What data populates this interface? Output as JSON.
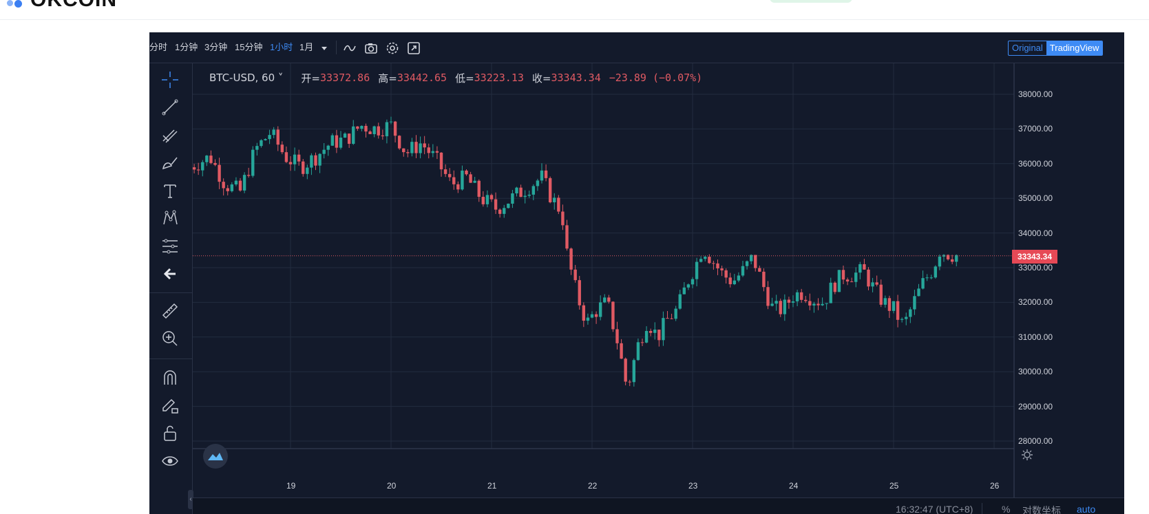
{
  "header": {
    "logo_text": "OKCOIN"
  },
  "toolbar": {
    "intervals": [
      {
        "label": "分时",
        "active": false
      },
      {
        "label": "1分钟",
        "active": false
      },
      {
        "label": "3分钟",
        "active": false
      },
      {
        "label": "15分钟",
        "active": false
      },
      {
        "label": "1小时",
        "active": true
      },
      {
        "label": "1月",
        "active": false
      }
    ],
    "dropdown_icon": "caret-down-icon",
    "tool_icons": [
      "indicator-wave-icon",
      "camera-icon",
      "gear-icon",
      "fullscreen-icon"
    ],
    "view_switch": {
      "original": "Original",
      "tradingview": "TradingView",
      "selected": "TradingView"
    }
  },
  "left_tools": [
    "crosshair-icon",
    "trend-line-icon",
    "pitchfork-icon",
    "brush-icon",
    "text-icon",
    "pattern-icon",
    "fib-icon",
    "back-arrow-icon",
    "ruler-icon",
    "zoom-in-icon",
    "magnet-icon",
    "lock-pencil-icon",
    "lock-icon",
    "eye-icon"
  ],
  "legend": {
    "symbol": "BTC-USD, 60",
    "open_label": "开=",
    "open": "33372.86",
    "high_label": "高=",
    "high": "33442.65",
    "low_label": "低=",
    "low": "33223.13",
    "close_label": "收=",
    "close": "33343.34",
    "change": "−23.89 (−0.07%)"
  },
  "current_price": "33343.34",
  "colors": {
    "background": "#131a2b",
    "grid": "#232c3f",
    "up": "#26a69a",
    "down": "#e05a63",
    "accent": "#3e8bf5",
    "price_tag": "#e64956"
  },
  "chart_data": {
    "type": "candlestick",
    "symbol": "BTC-USD",
    "interval": "60",
    "ylim": [
      27800,
      38500
    ],
    "y_ticks": [
      "38000.00",
      "37000.00",
      "36000.00",
      "35000.00",
      "34000.00",
      "33000.00",
      "32000.00",
      "31000.00",
      "30000.00",
      "29000.00",
      "28000.00"
    ],
    "x_ticks": [
      "19",
      "20",
      "21",
      "22",
      "23",
      "24",
      "25",
      "26"
    ],
    "x_range": [
      18,
      26
    ],
    "close_path": [
      [
        18.0,
        35900
      ],
      [
        18.2,
        36200
      ],
      [
        18.35,
        35400
      ],
      [
        18.5,
        35200
      ],
      [
        18.65,
        36400
      ],
      [
        18.8,
        36900
      ],
      [
        18.95,
        36200
      ],
      [
        19.1,
        35900
      ],
      [
        19.25,
        36200
      ],
      [
        19.4,
        36600
      ],
      [
        19.55,
        36700
      ],
      [
        19.7,
        37100
      ],
      [
        19.85,
        37000
      ],
      [
        20.0,
        37100
      ],
      [
        20.15,
        36300
      ],
      [
        20.3,
        36600
      ],
      [
        20.45,
        36100
      ],
      [
        20.6,
        35400
      ],
      [
        20.75,
        35600
      ],
      [
        20.9,
        35000
      ],
      [
        21.05,
        34700
      ],
      [
        21.2,
        35000
      ],
      [
        21.35,
        35300
      ],
      [
        21.5,
        35600
      ],
      [
        21.6,
        35000
      ],
      [
        21.7,
        34600
      ],
      [
        21.75,
        33400
      ],
      [
        21.85,
        32200
      ],
      [
        21.95,
        31400
      ],
      [
        22.05,
        31800
      ],
      [
        22.15,
        32000
      ],
      [
        22.25,
        30900
      ],
      [
        22.35,
        29500
      ],
      [
        22.45,
        30700
      ],
      [
        22.55,
        31500
      ],
      [
        22.65,
        31000
      ],
      [
        22.75,
        31500
      ],
      [
        22.85,
        31800
      ],
      [
        22.95,
        32600
      ],
      [
        23.05,
        33200
      ],
      [
        23.1,
        33600
      ],
      [
        23.2,
        33200
      ],
      [
        23.3,
        32800
      ],
      [
        23.4,
        32600
      ],
      [
        23.5,
        32900
      ],
      [
        23.6,
        33300
      ],
      [
        23.7,
        32500
      ],
      [
        23.8,
        31800
      ],
      [
        23.9,
        31800
      ],
      [
        24.0,
        32200
      ],
      [
        24.1,
        32300
      ],
      [
        24.2,
        32100
      ],
      [
        24.3,
        32000
      ],
      [
        24.4,
        32500
      ],
      [
        24.5,
        32800
      ],
      [
        24.6,
        32800
      ],
      [
        24.7,
        32900
      ],
      [
        24.8,
        32400
      ],
      [
        24.9,
        32000
      ],
      [
        25.0,
        31800
      ],
      [
        25.1,
        31300
      ],
      [
        25.2,
        32000
      ],
      [
        25.3,
        32600
      ],
      [
        25.4,
        33000
      ],
      [
        25.45,
        33500
      ],
      [
        25.55,
        33400
      ],
      [
        25.65,
        33343
      ]
    ]
  },
  "x_axis_labels": [
    "19",
    "20",
    "21",
    "22",
    "23",
    "24",
    "25",
    "26"
  ],
  "status": {
    "time": "16:32:47 (UTC+8)",
    "percent": "%",
    "log": "对数坐标",
    "auto": "auto"
  }
}
